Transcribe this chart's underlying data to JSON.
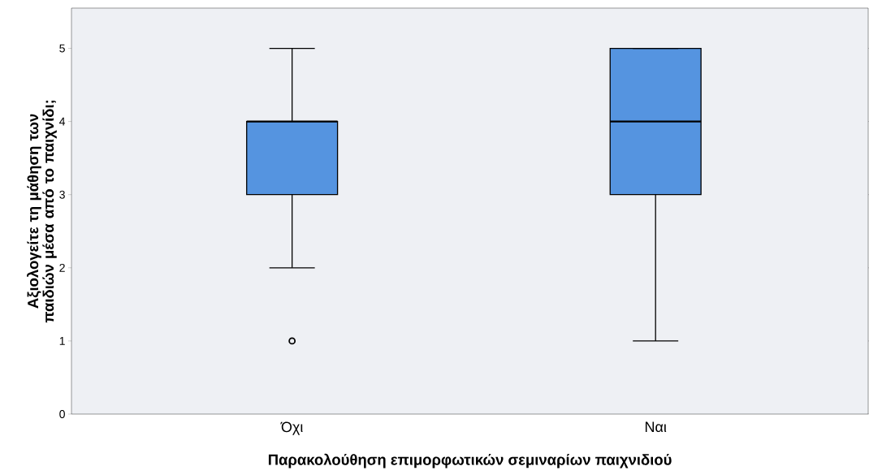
{
  "chart_data": {
    "type": "box",
    "categories": [
      "Όχι",
      "Ναι"
    ],
    "boxes": [
      {
        "low": 2,
        "q1": 3,
        "median": 4,
        "q3": 4,
        "high": 5,
        "outliers": [
          1
        ]
      },
      {
        "low": 1,
        "q1": 3,
        "median": 4,
        "q3": 5,
        "high": 5
      }
    ],
    "color": "#5594e0",
    "xlabel": "Παρακολούθηση επιμορφωτικών σεμιναρίων παιχνιδιού",
    "ylabel": "Αξιολογείτε τη μάθηση των παιδιών μέσα από το παιχνίδι;",
    "ylim": [
      0,
      5.55
    ],
    "yticks": [
      0,
      1,
      2,
      3,
      4,
      5
    ]
  }
}
